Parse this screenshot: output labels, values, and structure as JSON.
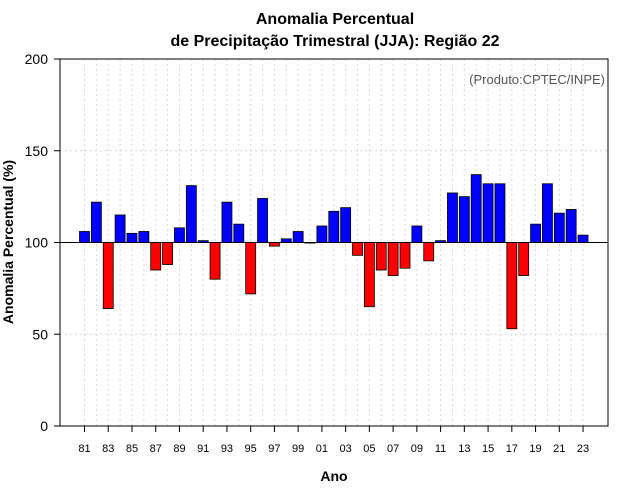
{
  "chart_data": {
    "type": "bar",
    "title": [
      "Anomalia Percentual",
      "de Precipitação Trimestral (JJA): Região 22"
    ],
    "xlabel": "Ano",
    "ylabel": "Anomalia Percentual (%)",
    "annotation": "(Produto:CPTEC/INPE)",
    "ylim": [
      0,
      200
    ],
    "yticks": [
      0,
      50,
      100,
      150,
      200
    ],
    "baseline": 100,
    "positive_color": "#0000ff",
    "negative_color": "#ff0000",
    "categories": [
      "1981",
      "1982",
      "1983",
      "1984",
      "1985",
      "1986",
      "1987",
      "1988",
      "1989",
      "1990",
      "1991",
      "1992",
      "1993",
      "1994",
      "1995",
      "1996",
      "1997",
      "1998",
      "1999",
      "2000",
      "2001",
      "2002",
      "2003",
      "2004",
      "2005",
      "2006",
      "2007",
      "2008",
      "2009",
      "2010",
      "2011",
      "2012",
      "2013",
      "2014",
      "2015",
      "2016",
      "2017",
      "2018",
      "2019",
      "2020",
      "2021",
      "2022",
      "2023"
    ],
    "xtick_labels": [
      "81",
      "83",
      "85",
      "87",
      "89",
      "91",
      "93",
      "95",
      "97",
      "99",
      "01",
      "03",
      "05",
      "07",
      "09",
      "11",
      "13",
      "15",
      "17",
      "19",
      "21",
      "23"
    ],
    "values": [
      106,
      122,
      64,
      115,
      105,
      106,
      85,
      88,
      108,
      131,
      101,
      80,
      122,
      110,
      72,
      124,
      98,
      102,
      106,
      100,
      109,
      117,
      119,
      93,
      65,
      85,
      82,
      86,
      109,
      90,
      101,
      127,
      125,
      137,
      132,
      132,
      53,
      82,
      110,
      132,
      116,
      118,
      104
    ]
  }
}
